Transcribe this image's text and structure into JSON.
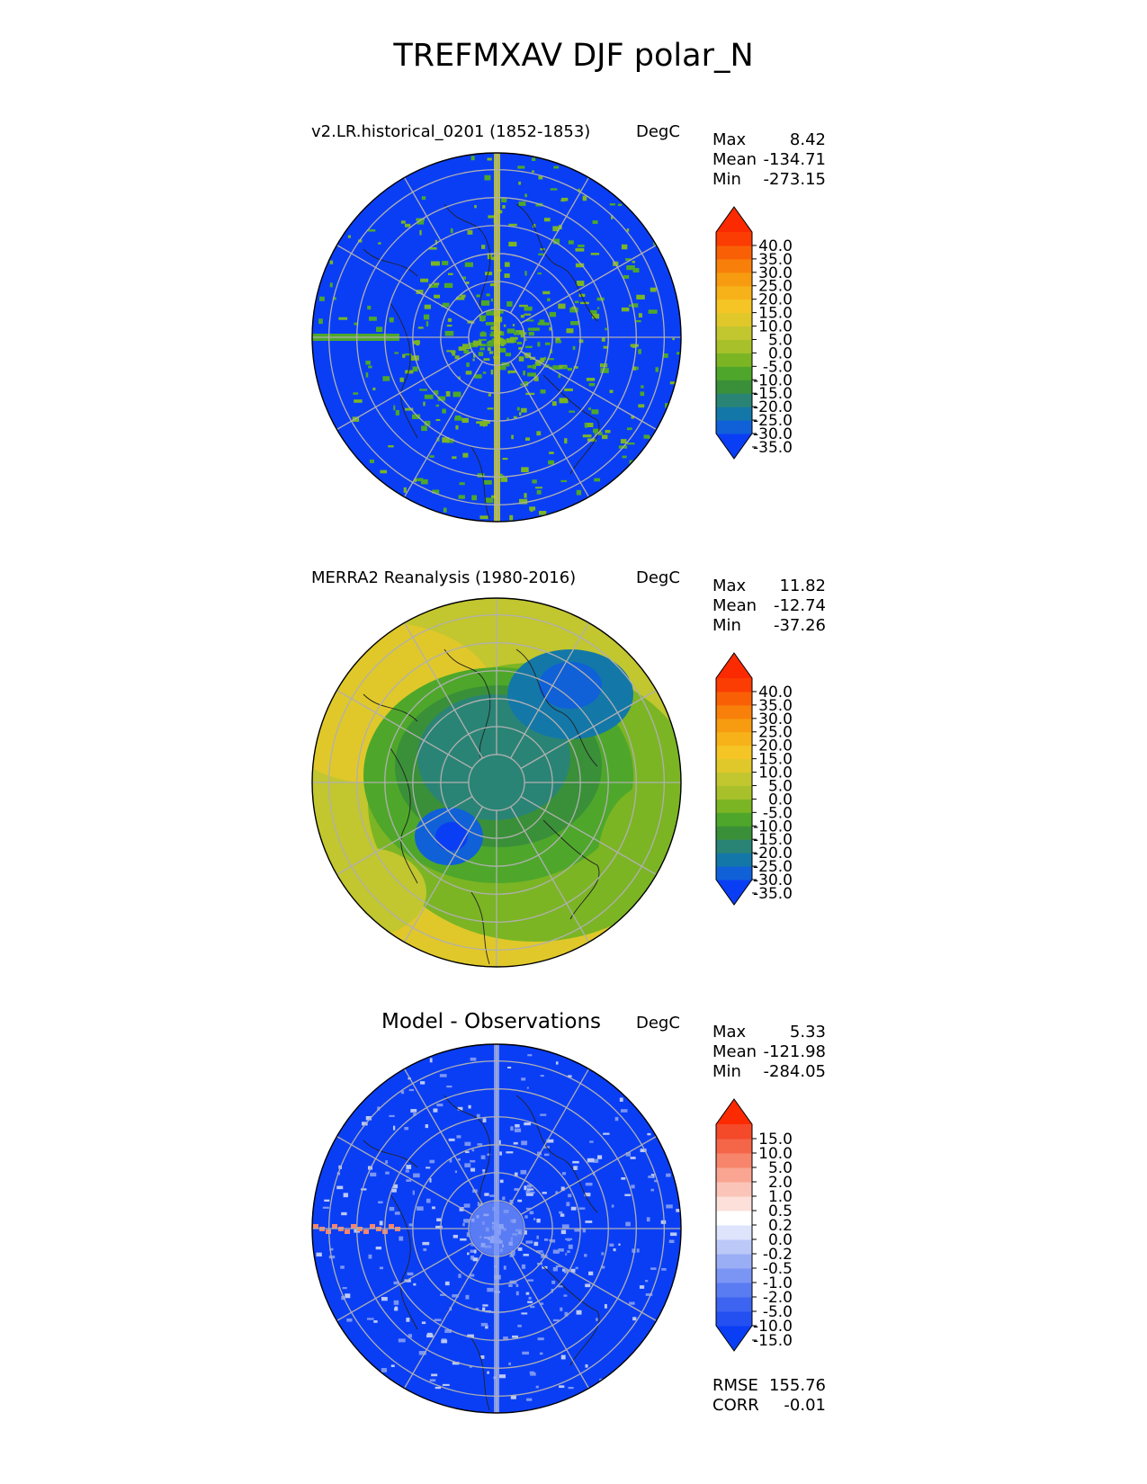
{
  "figure": {
    "title": "TREFMXAV DJF polar_N"
  },
  "panels": [
    {
      "title": "v2.LR.historical_0201 (1852-1853)",
      "units": "DegC",
      "stats": [
        {
          "label": "Max",
          "value": "8.42"
        },
        {
          "label": "Mean",
          "value": "-134.71"
        },
        {
          "label": "Min",
          "value": "-273.15"
        }
      ],
      "map_style": "model",
      "colorbar": {
        "ticks": [
          "40.0",
          "35.0",
          "30.0",
          "25.0",
          "20.0",
          "15.0",
          "10.0",
          "5.0",
          "0.0",
          "-5.0",
          "-10.0",
          "-15.0",
          "-20.0",
          "-25.0",
          "-30.0",
          "-35.0"
        ],
        "colors": [
          "#0a3ef5",
          "#1060d8",
          "#1378a8",
          "#2a8475",
          "#3a9038",
          "#4ea72a",
          "#7bb524",
          "#a8c12a",
          "#c2c62f",
          "#e0c82a",
          "#f5c525",
          "#f7b21a",
          "#f79b10",
          "#f8800a",
          "#f96006",
          "#fb3c03",
          "#fc2a00"
        ]
      }
    },
    {
      "title": "MERRA2 Reanalysis (1980-2016)",
      "units": "DegC",
      "stats": [
        {
          "label": "Max",
          "value": "11.82"
        },
        {
          "label": "Mean",
          "value": "-12.74"
        },
        {
          "label": "Min",
          "value": "-37.26"
        }
      ],
      "map_style": "obs",
      "colorbar": {
        "ticks": [
          "40.0",
          "35.0",
          "30.0",
          "25.0",
          "20.0",
          "15.0",
          "10.0",
          "5.0",
          "0.0",
          "-5.0",
          "-10.0",
          "-15.0",
          "-20.0",
          "-25.0",
          "-30.0",
          "-35.0"
        ],
        "colors": [
          "#0a3ef5",
          "#1060d8",
          "#1378a8",
          "#2a8475",
          "#3a9038",
          "#4ea72a",
          "#7bb524",
          "#a8c12a",
          "#c2c62f",
          "#e0c82a",
          "#f5c525",
          "#f7b21a",
          "#f79b10",
          "#f8800a",
          "#f96006",
          "#fb3c03",
          "#fc2a00"
        ]
      }
    },
    {
      "title": "Model - Observations",
      "units": "DegC",
      "stats": [
        {
          "label": "Max",
          "value": "5.33"
        },
        {
          "label": "Mean",
          "value": "-121.98"
        },
        {
          "label": "Min",
          "value": "-284.05"
        }
      ],
      "extra_stats": [
        {
          "label": "RMSE",
          "value": "155.76"
        },
        {
          "label": "CORR",
          "value": "-0.01"
        }
      ],
      "map_style": "diff",
      "colorbar": {
        "ticks": [
          "15.0",
          "10.0",
          "5.0",
          "2.0",
          "1.0",
          "0.5",
          "0.2",
          "0.0",
          "-0.2",
          "-0.5",
          "-1.0",
          "-2.0",
          "-5.0",
          "-10.0",
          "-15.0"
        ],
        "colors": [
          "#0a3ef5",
          "#2450f2",
          "#3d64f0",
          "#5a7cf2",
          "#7a95f4",
          "#9aaef6",
          "#bcc9f8",
          "#dde4fb",
          "#ffffff",
          "#fde0da",
          "#fbc4b8",
          "#f9a592",
          "#f7856c",
          "#f56648",
          "#f44a2a",
          "#fc2a00"
        ]
      }
    }
  ]
}
